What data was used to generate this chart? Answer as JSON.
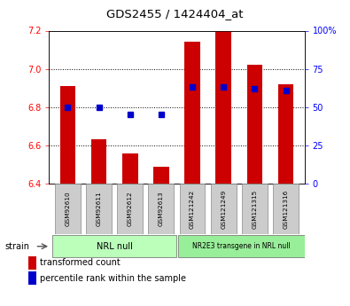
{
  "title": "GDS2455 / 1424404_at",
  "samples": [
    "GSM92610",
    "GSM92611",
    "GSM92612",
    "GSM92613",
    "GSM121242",
    "GSM121249",
    "GSM121315",
    "GSM121316"
  ],
  "transformed_count": [
    6.91,
    6.63,
    6.56,
    6.49,
    7.14,
    7.2,
    7.02,
    6.92
  ],
  "percentile_rank": [
    50,
    50,
    45,
    45,
    63,
    63,
    62,
    61
  ],
  "ylim_left": [
    6.4,
    7.2
  ],
  "ylim_right": [
    0,
    100
  ],
  "yticks_left": [
    6.4,
    6.6,
    6.8,
    7.0,
    7.2
  ],
  "yticks_right": [
    0,
    25,
    50,
    75,
    100
  ],
  "ytick_labels_right": [
    "0",
    "25",
    "50",
    "75",
    "100%"
  ],
  "group1_label": "NRL null",
  "group2_label": "NR2E3 transgene in NRL null",
  "bar_color": "#cc0000",
  "dot_color": "#0000cc",
  "group1_bg": "#bbffbb",
  "group2_bg": "#99ee99",
  "legend_bar_label": "transformed count",
  "legend_dot_label": "percentile rank within the sample",
  "strain_label": "strain",
  "bar_width": 0.5,
  "bar_bottom": 6.4,
  "sample_box_color": "#cccccc"
}
